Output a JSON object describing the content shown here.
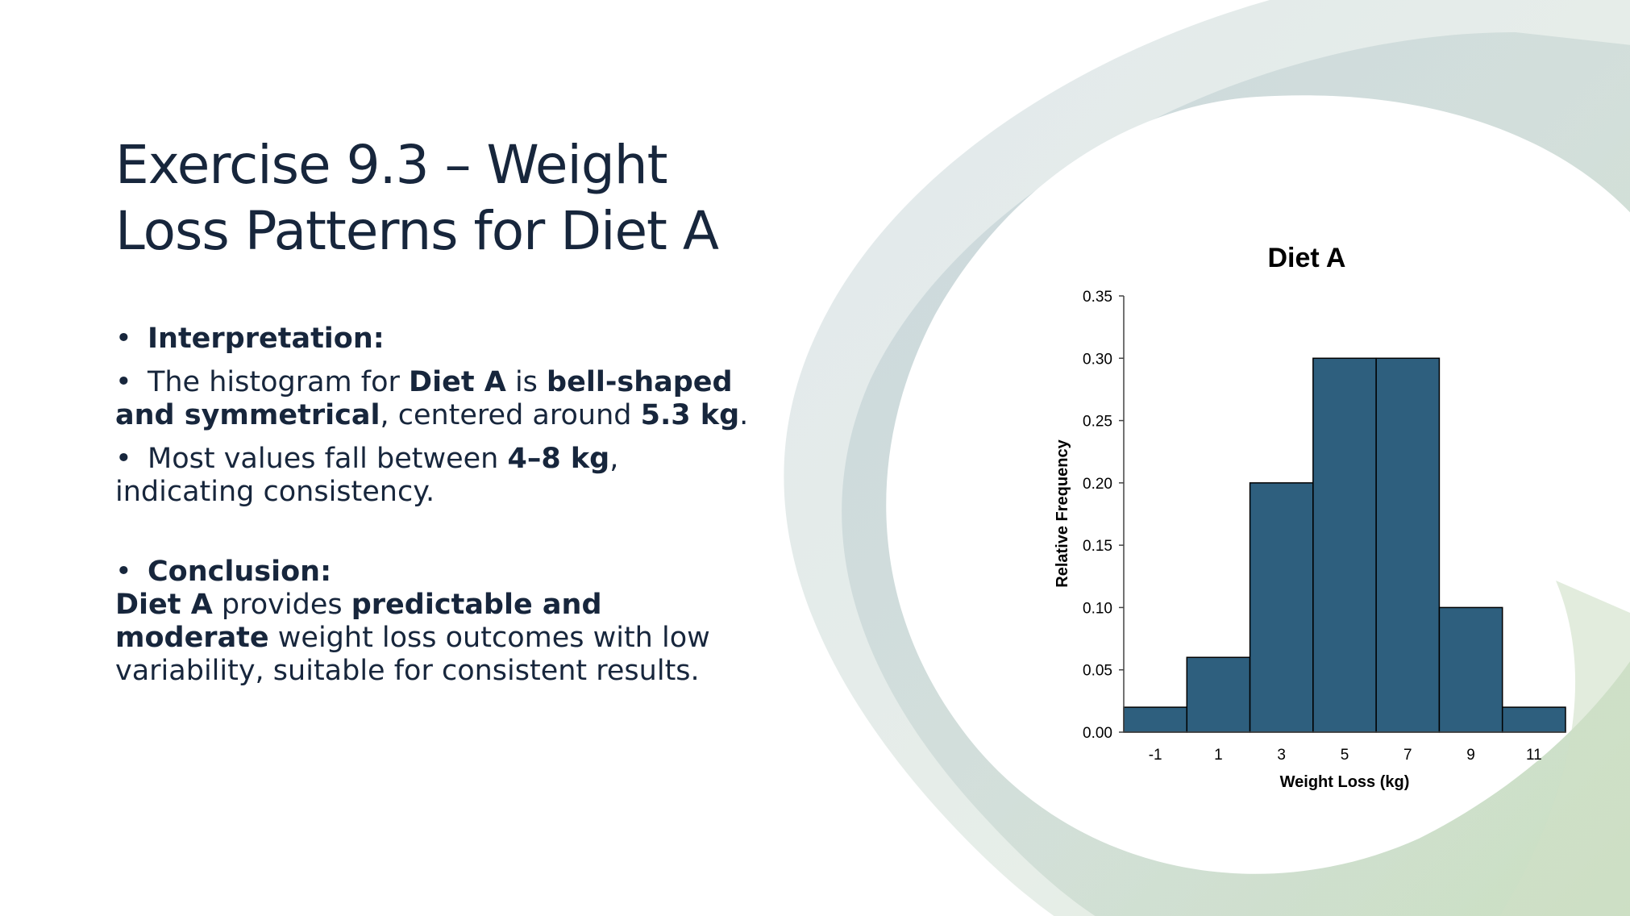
{
  "slide": {
    "title": "Exercise 9.3 – Weight Loss Patterns for Diet A",
    "interpretation_heading": "Interpretation:",
    "bullet1": {
      "t1": "The histogram for ",
      "b1": "Diet A",
      "t2": " is ",
      "b2": "bell-shaped and symmetrical",
      "t3": ", centered around ",
      "b3": "5.3 kg",
      "t4": "."
    },
    "bullet2": {
      "t1": "Most values fall between ",
      "b1": "4–8 kg",
      "t2": ", indicating consistency."
    },
    "conclusion_heading": "Conclusion:",
    "conclusion": {
      "b1": "Diet A",
      "t1": " provides ",
      "b2": "predictable and moderate",
      "t2": " weight loss outcomes with low variability, suitable for consistent results."
    },
    "bullet_glyph": "•"
  },
  "colors": {
    "bar": "#2e5f7e",
    "text": "#17263c"
  },
  "chart_data": {
    "type": "bar",
    "title": "Diet A",
    "xlabel": "Weight Loss (kg)",
    "ylabel": "Relative Frequency",
    "categories": [
      "-1",
      "1",
      "3",
      "5",
      "7",
      "9",
      "11"
    ],
    "values": [
      0.02,
      0.06,
      0.2,
      0.3,
      0.3,
      0.1,
      0.02
    ],
    "yticks": [
      "0.00",
      "0.05",
      "0.10",
      "0.15",
      "0.20",
      "0.25",
      "0.30",
      "0.35"
    ],
    "ylim": [
      0,
      0.35
    ],
    "grid": false,
    "legend": "none"
  }
}
